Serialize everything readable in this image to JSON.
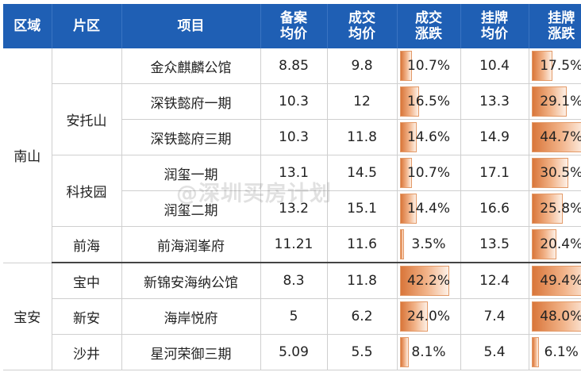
{
  "headers": [
    [
      "区域"
    ],
    [
      "片区"
    ],
    [
      "项目"
    ],
    [
      "备案",
      "均价"
    ],
    [
      "成交",
      "均价"
    ],
    [
      "成交",
      "涨跌"
    ],
    [
      "挂牌",
      "均价"
    ],
    [
      "挂牌",
      "涨跌"
    ]
  ],
  "rows": [
    {
      "district": "南山",
      "area": "",
      "project": "金众麒麟公馆",
      "filing_price": "8.85",
      "deal_price": "9.8",
      "deal_change": "10.7%",
      "deal_change_value": 10.7,
      "listing_price": "10.4",
      "listing_change": "17.5%",
      "listing_change_value": 17.5
    },
    {
      "district": "",
      "area": "安托山",
      "project": "深铁懿府一期",
      "filing_price": "10.3",
      "deal_price": "12",
      "deal_change": "16.5%",
      "deal_change_value": 16.5,
      "listing_price": "13.3",
      "listing_change": "29.1%",
      "listing_change_value": 29.1
    },
    {
      "district": "",
      "area": "",
      "project": "深铁懿府三期",
      "filing_price": "10.3",
      "deal_price": "11.8",
      "deal_change": "14.6%",
      "deal_change_value": 14.6,
      "listing_price": "14.9",
      "listing_change": "44.7%",
      "listing_change_value": 44.7
    },
    {
      "district": "",
      "area": "科技园",
      "project": "润玺一期",
      "filing_price": "13.1",
      "deal_price": "14.5",
      "deal_change": "10.7%",
      "deal_change_value": 10.7,
      "listing_price": "17.1",
      "listing_change": "30.5%",
      "listing_change_value": 30.5
    },
    {
      "district": "",
      "area": "",
      "project": "润玺二期",
      "filing_price": "13.2",
      "deal_price": "15.1",
      "deal_change": "14.4%",
      "deal_change_value": 14.4,
      "listing_price": "16.6",
      "listing_change": "25.8%",
      "listing_change_value": 25.8
    },
    {
      "district": "",
      "area": "前海",
      "project": "前海润峯府",
      "filing_price": "11.21",
      "deal_price": "11.6",
      "deal_change": "3.5%",
      "deal_change_value": 3.5,
      "listing_price": "13.5",
      "listing_change": "20.4%",
      "listing_change_value": 20.4
    },
    {
      "district": "宝安",
      "area": "宝中",
      "project": "新锦安海纳公馆",
      "filing_price": "8.3",
      "deal_price": "11.8",
      "deal_change": "42.2%",
      "deal_change_value": 42.2,
      "listing_price": "12.4",
      "listing_change": "49.4%",
      "listing_change_value": 49.4
    },
    {
      "district": "",
      "area": "新安",
      "project": "海岸悦府",
      "filing_price": "5",
      "deal_price": "6.2",
      "deal_change": "24.0%",
      "deal_change_value": 24.0,
      "listing_price": "7.4",
      "listing_change": "48.0%",
      "listing_change_value": 48.0
    },
    {
      "district": "",
      "area": "沙井",
      "project": "星河荣御三期",
      "filing_price": "5.09",
      "deal_price": "5.5",
      "deal_change": "8.1%",
      "deal_change_value": 8.1,
      "listing_price": "5.4",
      "listing_change": "6.1%",
      "listing_change_value": 6.1
    }
  ],
  "bar_max_value": 49.4,
  "watermark": "@深圳买房计划",
  "colors": {
    "header_bg": "#1f5fb4",
    "bar": "#d9763a"
  }
}
